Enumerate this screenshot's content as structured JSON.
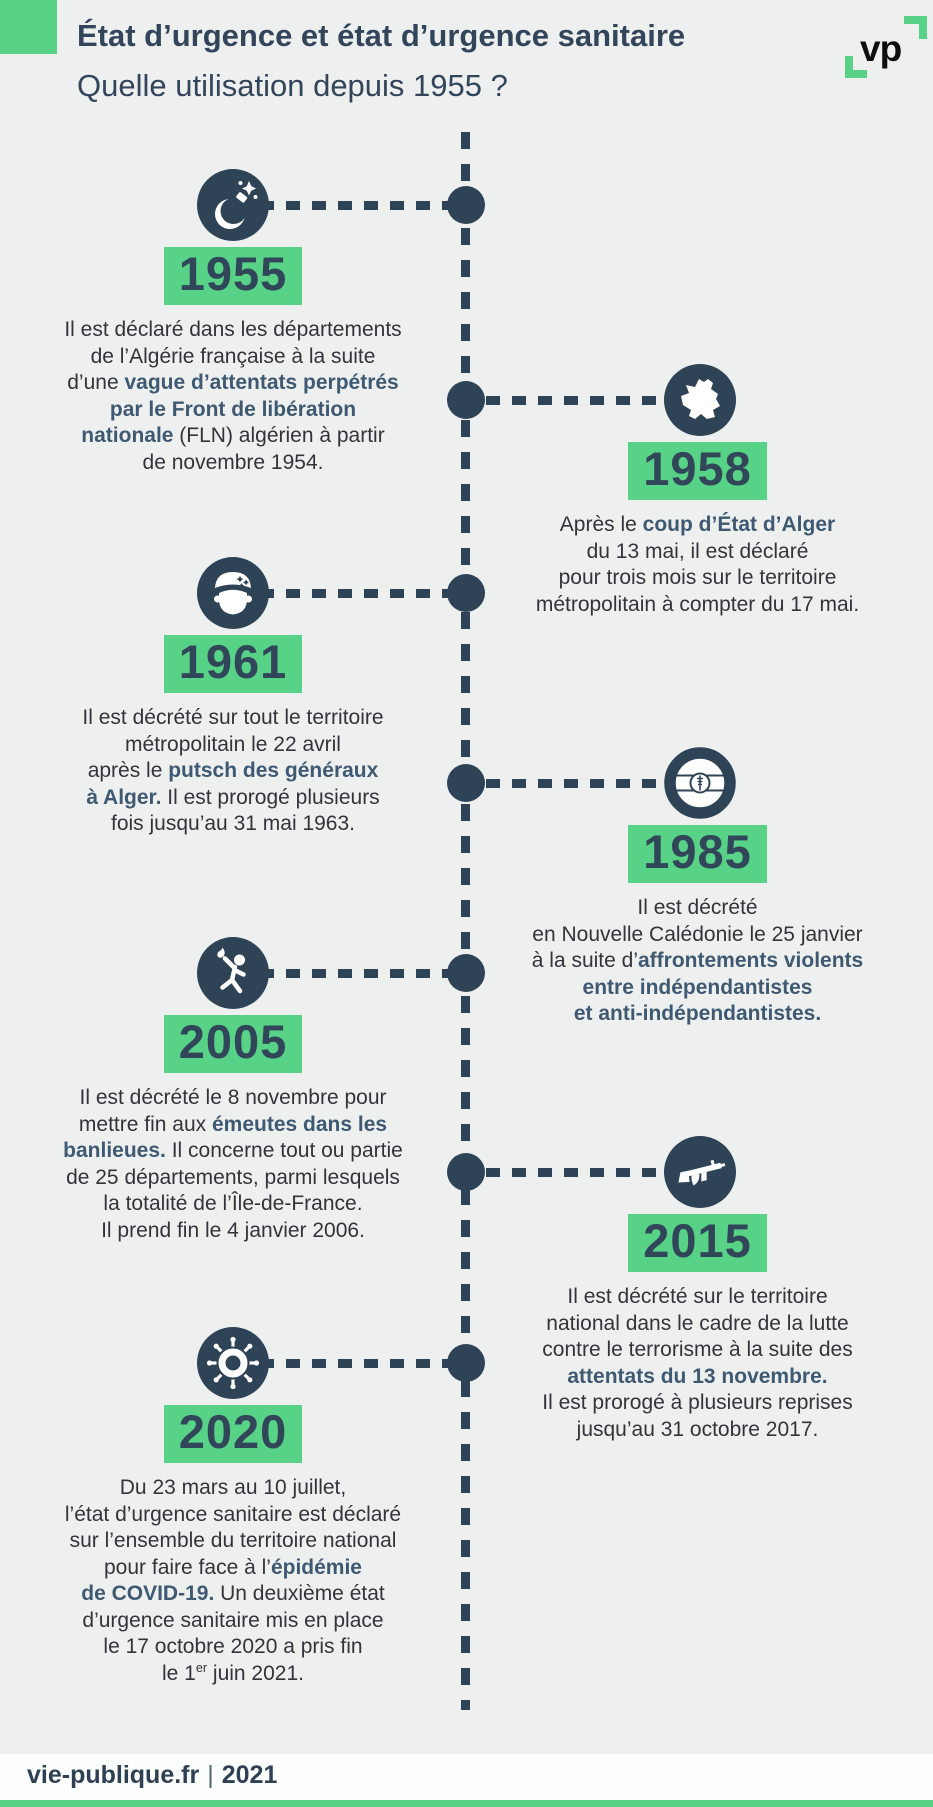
{
  "header": {
    "title": "État d’urgence et état d’urgence sanitaire",
    "subtitle": "Quelle utilisation depuis 1955 ?",
    "logo_text": "vp"
  },
  "colors": {
    "accent_green": "#58d287",
    "navy": "#2e4356",
    "body_text": "#32343a",
    "bold_text": "#3e5971",
    "background": "#eef0f0"
  },
  "footer": {
    "site": "vie-publique.fr",
    "separator": "|",
    "year": "2021"
  },
  "entries": [
    {
      "year": "1955",
      "side": "left",
      "icon": "bomb-icon",
      "segments": [
        {
          "t": "Il est déclaré dans les départements\nde l’Algérie française à la suite\nd’une "
        },
        {
          "t": "vague d’attentats perpétrés\npar le Front de libération\nnationale",
          "b": true
        },
        {
          "t": " (FLN) algérien à partir\nde novembre 1954."
        }
      ]
    },
    {
      "year": "1958",
      "side": "right",
      "icon": "france-map-icon",
      "segments": [
        {
          "t": "Après le "
        },
        {
          "t": "coup d’État d’Alger",
          "b": true
        },
        {
          "t": "\ndu 13 mai, il est déclaré\npour trois mois sur le territoire\nmétropolitain à compter du 17 mai."
        }
      ]
    },
    {
      "year": "1961",
      "side": "left",
      "icon": "general-beret-icon",
      "segments": [
        {
          "t": "Il est décrété sur tout le territoire\nmétropolitain le 22 avril\naprès le "
        },
        {
          "t": "putsch des généraux\nà Alger.",
          "b": true
        },
        {
          "t": " Il est prorogé plusieurs\nfois jusqu’au 31 mai 1963."
        }
      ]
    },
    {
      "year": "1985",
      "side": "right",
      "icon": "new-caledonia-flag-icon",
      "segments": [
        {
          "t": "Il est décrété\nen Nouvelle Calédonie le 25 janvier\nà la suite d’"
        },
        {
          "t": "affrontements violents\nentre indépendantistes\net anti-indépendantistes.",
          "b": true
        }
      ]
    },
    {
      "year": "2005",
      "side": "left",
      "icon": "rioter-icon",
      "segments": [
        {
          "t": "Il est décrété le 8 novembre pour\nmettre fin aux "
        },
        {
          "t": "émeutes dans les\nbanlieues.",
          "b": true
        },
        {
          "t": " Il concerne tout ou partie\nde 25 départements, parmi lesquels\nla totalité de l’Île-de-France.\nIl prend fin le 4 janvier 2006."
        }
      ]
    },
    {
      "year": "2015",
      "side": "right",
      "icon": "rifle-icon",
      "segments": [
        {
          "t": "Il est décrété sur le territoire\nnational dans le cadre de la lutte\ncontre le terrorisme à la suite des\n"
        },
        {
          "t": "attentats du 13 novembre.",
          "b": true
        },
        {
          "t": "\nIl est prorogé à plusieurs reprises\njusqu’au 31 octobre 2017."
        }
      ]
    },
    {
      "year": "2020",
      "side": "left",
      "icon": "virus-icon",
      "segments": [
        {
          "t": "Du 23 mars au 10 juillet,\nl’état d’urgence sanitaire est déclaré\nsur l’ensemble du territoire national\npour faire face à l’"
        },
        {
          "t": "épidémie\nde COVID-19.",
          "b": true
        },
        {
          "t": " Un deuxième état\nd’urgence sanitaire mis en place\nle 17 octobre 2020 a pris fin\nle 1"
        },
        {
          "t": "er",
          "sup": true
        },
        {
          "t": " juin 2021."
        }
      ]
    }
  ]
}
